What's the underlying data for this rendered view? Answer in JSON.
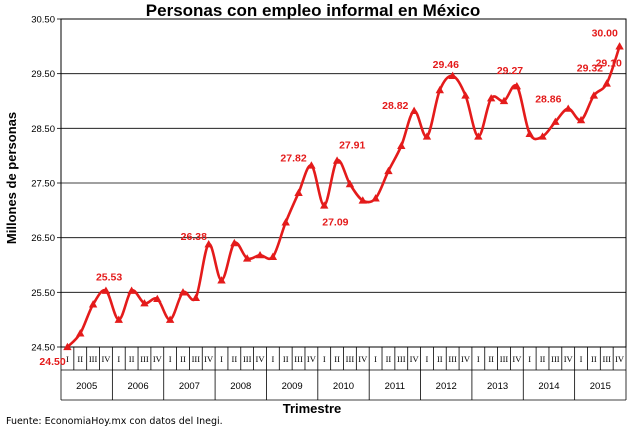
{
  "chart_data": {
    "type": "line",
    "title": "Personas con empleo informal en México",
    "xlabel": "Trimestre",
    "ylabel": "Millones de personas",
    "ylim": [
      24.5,
      30.5
    ],
    "yticks": [
      "30.50",
      "29.50",
      "28.50",
      "27.50",
      "26.50",
      "25.50",
      "24.50"
    ],
    "quarters": [
      "I",
      "II",
      "III",
      "IV"
    ],
    "years": [
      "2005",
      "2006",
      "2007",
      "2008",
      "2009",
      "2010",
      "2011",
      "2012",
      "2013",
      "2014",
      "2015"
    ],
    "grid": true,
    "line_color": "#e41b1b",
    "series": [
      {
        "values": [
          24.5,
          24.75,
          25.28,
          25.53,
          25.0,
          25.53,
          25.3,
          25.38,
          25.0,
          25.5,
          25.4,
          26.38,
          25.72,
          26.4,
          26.12,
          26.18,
          26.15,
          26.78,
          27.32,
          27.82,
          27.09,
          27.91,
          27.48,
          27.18,
          27.22,
          27.72,
          28.18,
          28.82,
          28.35,
          29.2,
          29.46,
          29.1,
          28.35,
          29.05,
          29.0,
          29.27,
          28.4,
          28.35,
          28.62,
          28.86,
          28.65,
          29.1,
          29.32,
          30.0
        ]
      }
    ],
    "data_labels": [
      {
        "text": "24.50"
      },
      {
        "text": "25.53"
      },
      {
        "text": "26.38"
      },
      {
        "text": "27.82"
      },
      {
        "text": "27.09"
      },
      {
        "text": "27.91"
      },
      {
        "text": "28.82"
      },
      {
        "text": "29.46"
      },
      {
        "text": "29.27"
      },
      {
        "text": "28.86"
      },
      {
        "text": "29.32"
      },
      {
        "text": "29.10"
      },
      {
        "text": "30.00"
      }
    ]
  },
  "source": "Fuente: EconomiaHoy.mx con datos del Inegi."
}
